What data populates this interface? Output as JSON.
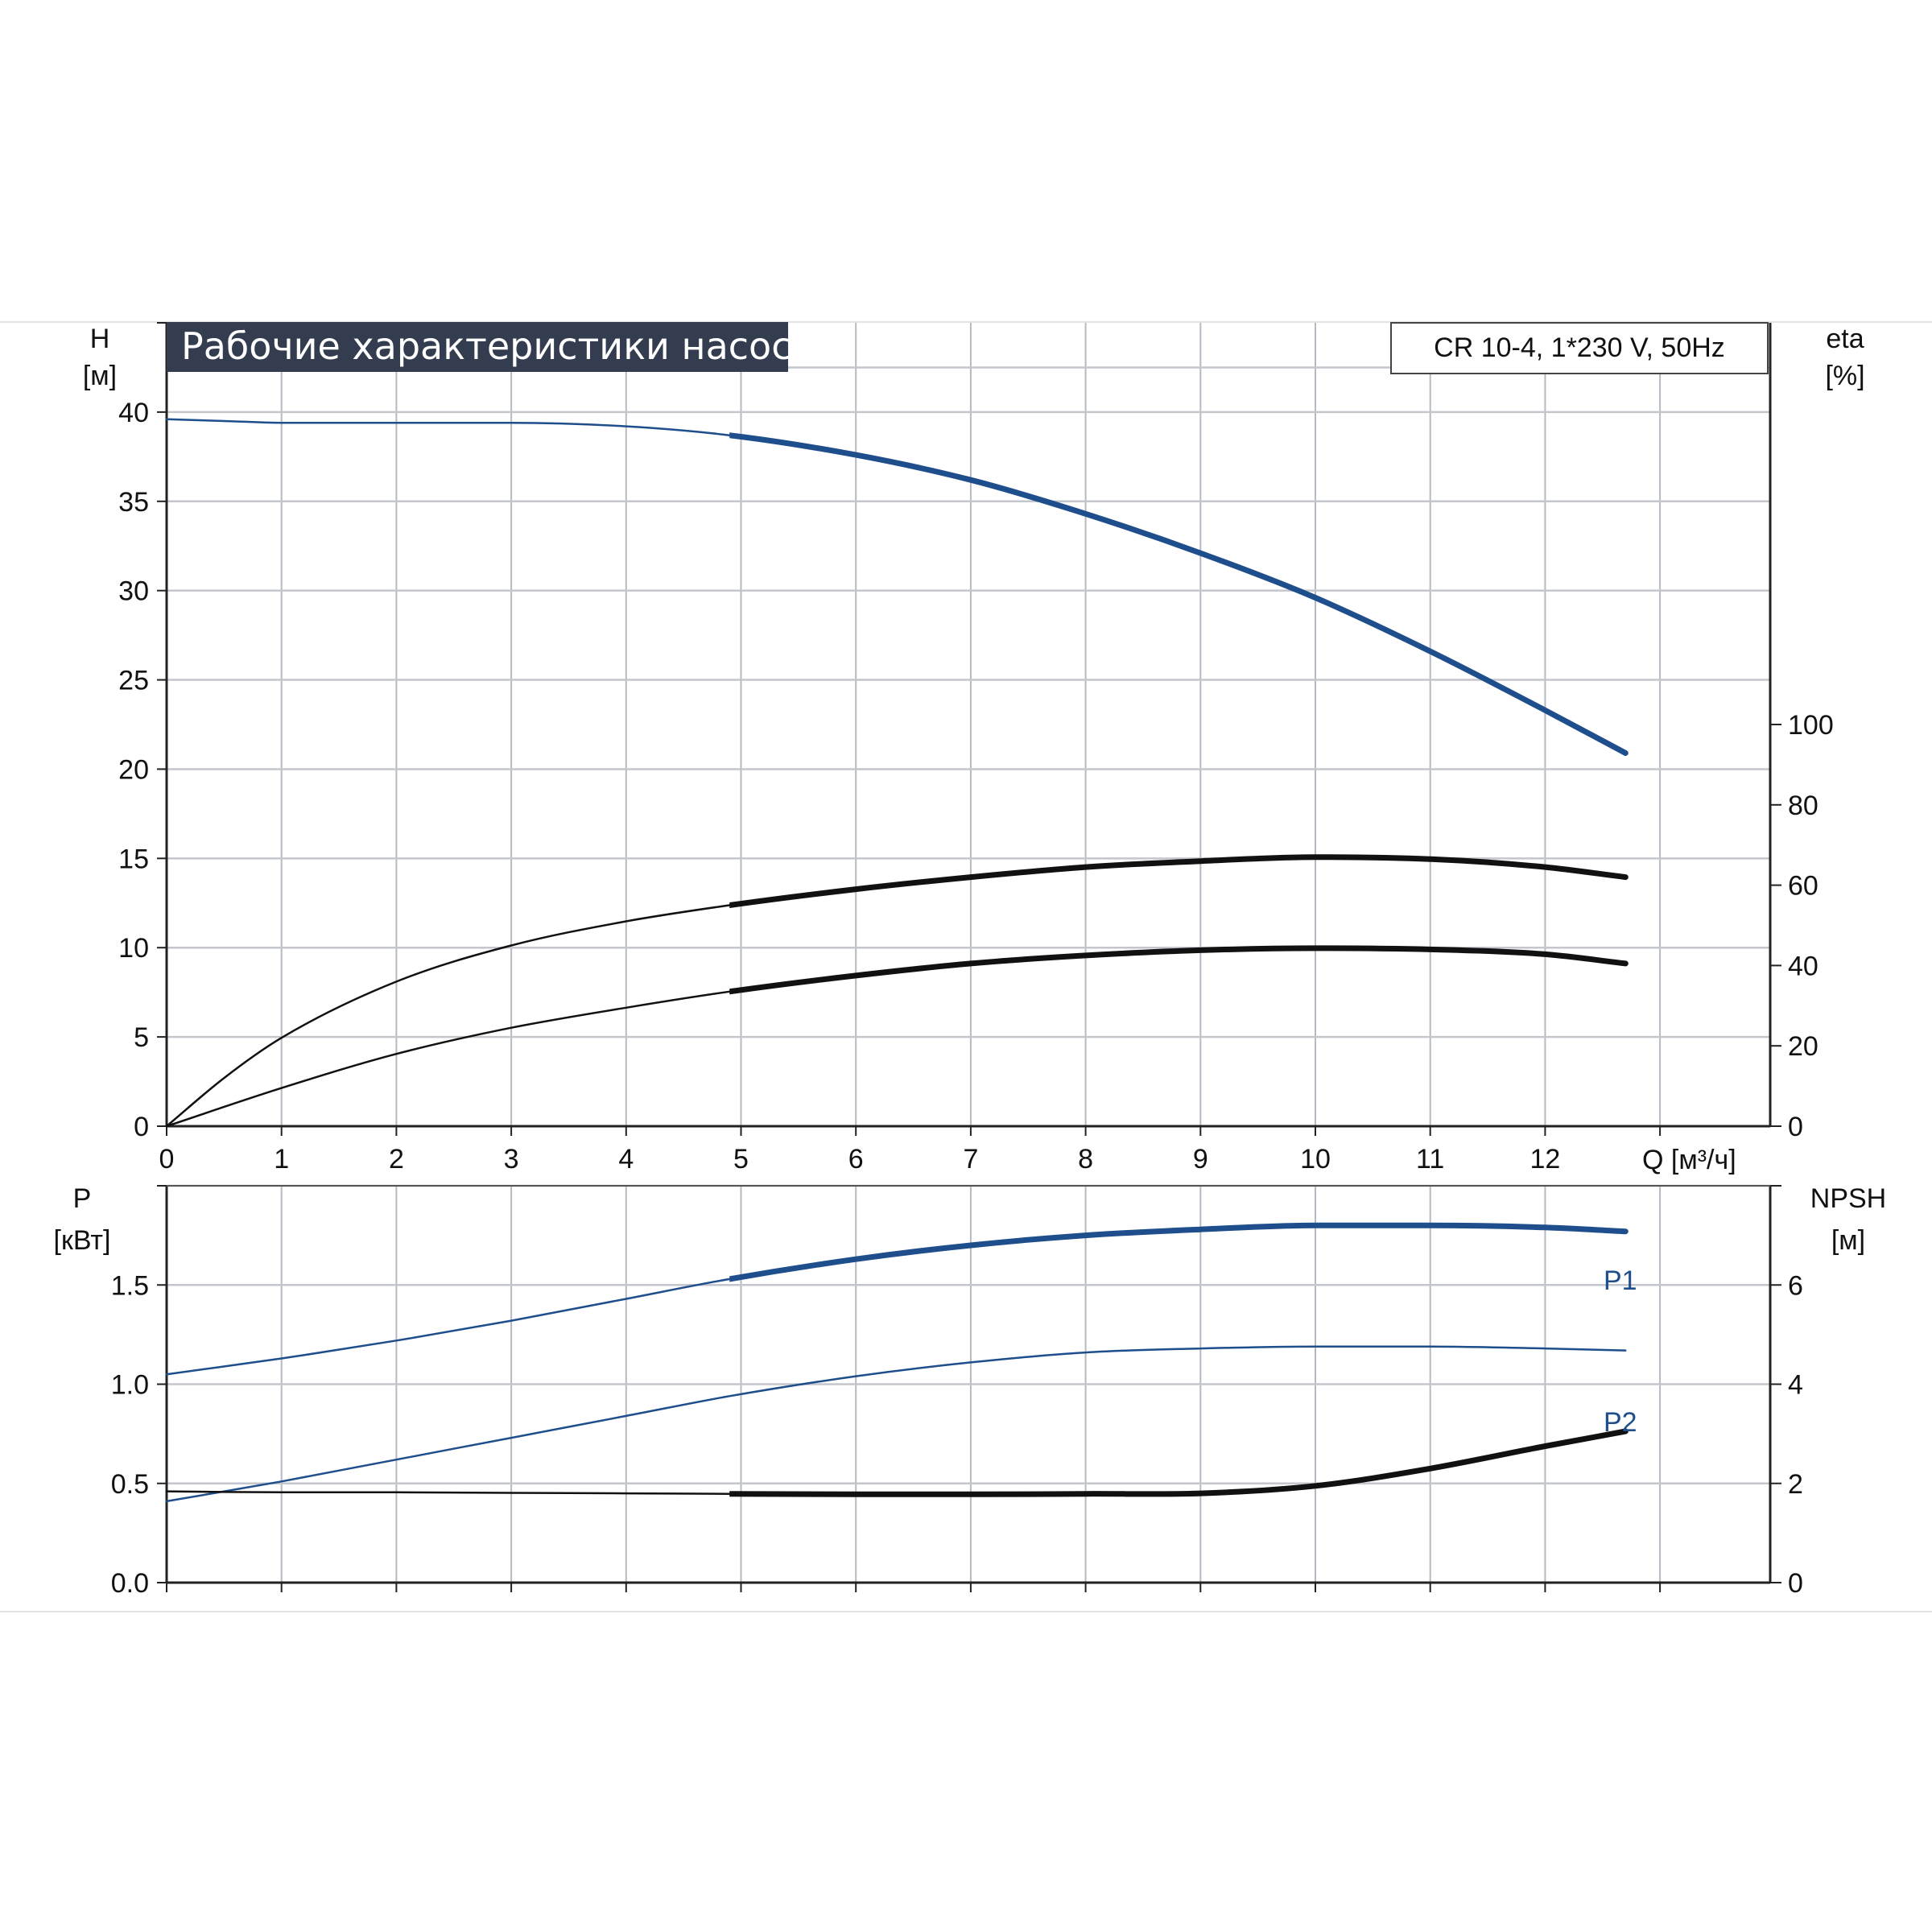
{
  "chart_data": [
    {
      "type": "line",
      "title": "Рабочие характеристики насоса",
      "model_label": "CR 10-4, 1*230 V, 50Hz",
      "y_left_label": {
        "name": "H",
        "unit": "[м]"
      },
      "y_right_label": {
        "name": "eta",
        "unit": "[%]"
      },
      "x_label": "Q [м³/ч]",
      "xlim": [
        0,
        14
      ],
      "ylim_left": [
        0,
        45
      ],
      "ylim_right": [
        0,
        200
      ],
      "x_ticks": [
        "0",
        "1",
        "2",
        "3",
        "4",
        "5",
        "6",
        "7",
        "8",
        "9",
        "10",
        "11",
        "12"
      ],
      "y_left_ticks": [
        "0",
        "5",
        "10",
        "15",
        "20",
        "25",
        "30",
        "35",
        "40"
      ],
      "y_right_ticks": [
        "0",
        "20",
        "40",
        "60",
        "80",
        "100"
      ],
      "grid": true,
      "series": [
        {
          "axis": "left",
          "color": "#1f4e8c",
          "bold_from": 4.9,
          "x": [
            0,
            0.5,
            1,
            2,
            3,
            4,
            4.9,
            6,
            7,
            8,
            9,
            10,
            11,
            12,
            12.7
          ],
          "y": [
            39.6,
            39.5,
            39.4,
            39.4,
            39.4,
            39.2,
            38.7,
            37.6,
            36.2,
            34.3,
            32.1,
            29.6,
            26.6,
            23.3,
            20.9
          ]
        },
        {
          "axis": "right",
          "color": "#111111",
          "bold_from": 4.9,
          "x": [
            0,
            0.5,
            1,
            2,
            3,
            4,
            4.9,
            6,
            7,
            8,
            9,
            10,
            11,
            12,
            12.7
          ],
          "y": [
            0,
            12,
            22,
            36,
            45,
            51,
            55,
            59,
            62,
            64.5,
            66,
            67,
            66.5,
            64.5,
            62
          ]
        },
        {
          "axis": "right",
          "color": "#111111",
          "bold_from": 4.9,
          "x": [
            0,
            1,
            2,
            3,
            4,
            4.9,
            6,
            7,
            8,
            9,
            10,
            11,
            12,
            12.7
          ],
          "y": [
            0,
            9.5,
            18,
            24.5,
            29.5,
            33.5,
            37.5,
            40.5,
            42.5,
            43.8,
            44.3,
            44,
            42.8,
            40.5
          ]
        }
      ]
    },
    {
      "type": "line",
      "y_left_label": {
        "name": "P",
        "unit": "[кВт]"
      },
      "y_right_label": {
        "name": "NPSH",
        "unit": "[м]"
      },
      "xlim": [
        0,
        14
      ],
      "ylim_left": [
        0,
        2.0
      ],
      "ylim_right": [
        0,
        8
      ],
      "y_left_ticks": [
        "0.0",
        "0.5",
        "1.0",
        "1.5"
      ],
      "y_right_ticks": [
        "0",
        "2",
        "4",
        "6"
      ],
      "grid": true,
      "series": [
        {
          "name": "P1",
          "axis": "left",
          "color": "#1f4e8c",
          "bold_from": 4.9,
          "x": [
            0,
            1,
            2,
            3,
            4,
            4.9,
            6,
            7,
            8,
            9,
            10,
            11,
            12,
            12.7
          ],
          "y": [
            1.05,
            1.13,
            1.22,
            1.32,
            1.43,
            1.53,
            1.63,
            1.7,
            1.75,
            1.78,
            1.8,
            1.8,
            1.79,
            1.77
          ]
        },
        {
          "name": "P2",
          "axis": "left",
          "color": "#1f4e8c",
          "bold_from": 99,
          "x": [
            0,
            1,
            2,
            3,
            4,
            4.9,
            6,
            7,
            8,
            9,
            10,
            11,
            12,
            12.7
          ],
          "y": [
            0.41,
            0.51,
            0.62,
            0.73,
            0.84,
            0.94,
            1.04,
            1.11,
            1.16,
            1.18,
            1.19,
            1.19,
            1.18,
            1.17
          ]
        },
        {
          "axis": "right",
          "color": "#111111",
          "bold_from": 4.9,
          "x": [
            0,
            1,
            2,
            3,
            4,
            4.9,
            6,
            7,
            8,
            9,
            10,
            11,
            12,
            12.7
          ],
          "y": [
            1.84,
            1.82,
            1.82,
            1.81,
            1.8,
            1.79,
            1.78,
            1.78,
            1.79,
            1.8,
            1.95,
            2.3,
            2.75,
            3.05
          ]
        }
      ]
    }
  ]
}
